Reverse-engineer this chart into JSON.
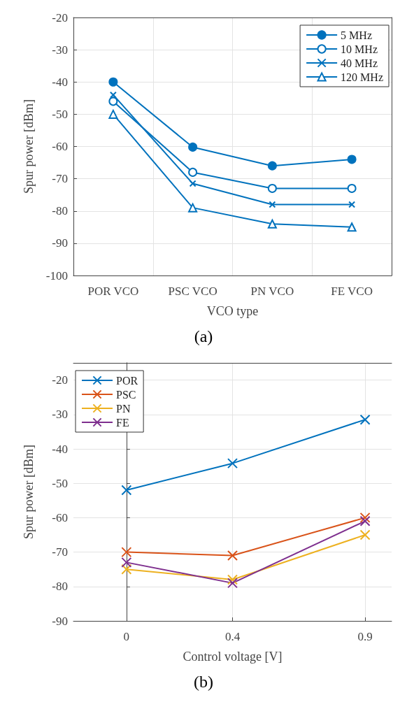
{
  "chart_data": [
    {
      "type": "line",
      "title": "(a)",
      "xlabel": "VCO type",
      "ylabel": "Spur power [dBm]",
      "categories": [
        "POR VCO",
        "PSC VCO",
        "PN VCO",
        "FE VCO"
      ],
      "series": [
        {
          "name": "5 MHz",
          "color": "#0072bd",
          "marker": "circle",
          "values": [
            -40,
            -60.2,
            -66,
            -64
          ]
        },
        {
          "name": "10 MHz",
          "color": "#0072bd",
          "marker": "circle",
          "values": [
            -46,
            -68,
            -73,
            -73
          ]
        },
        {
          "name": "40 MHz",
          "color": "#0072bd",
          "marker": "cross",
          "values": [
            -44,
            -71.5,
            -78,
            -78
          ]
        },
        {
          "name": "120 MHz",
          "color": "#0072bd",
          "marker": "triangle",
          "values": [
            -50,
            -79,
            -84,
            -85
          ]
        }
      ],
      "ylim": [
        -100,
        -20
      ],
      "yticks": [
        -100,
        -90,
        -80,
        -70,
        -60,
        -50,
        -40,
        -30,
        -20
      ],
      "grid": true,
      "legend": "top right"
    },
    {
      "type": "line",
      "title": "(b)",
      "xlabel": "Control voltage [V]",
      "ylabel": "Spur power [dBm]",
      "x": [
        0,
        0.4,
        0.9
      ],
      "series": [
        {
          "name": "POR",
          "color": "#0072bd",
          "values": [
            -52,
            -44.2,
            -31.5
          ]
        },
        {
          "name": "PSC",
          "color": "#d95319",
          "values": [
            -70,
            -71,
            -60
          ]
        },
        {
          "name": "PN",
          "color": "#edb120",
          "values": [
            -75,
            -78,
            -65
          ]
        },
        {
          "name": "FE",
          "color": "#7e2f8e",
          "values": [
            -73,
            -79,
            -61
          ]
        }
      ],
      "xlim": [
        -0.2,
        1
      ],
      "xticks": [
        0,
        0.4,
        0.9
      ],
      "ylim": [
        -90,
        -15
      ],
      "yticks": [
        -90,
        -80,
        -70,
        -60,
        -50,
        -40,
        -30,
        -20
      ],
      "grid": true,
      "legend": "top left",
      "marker": "cross"
    }
  ]
}
